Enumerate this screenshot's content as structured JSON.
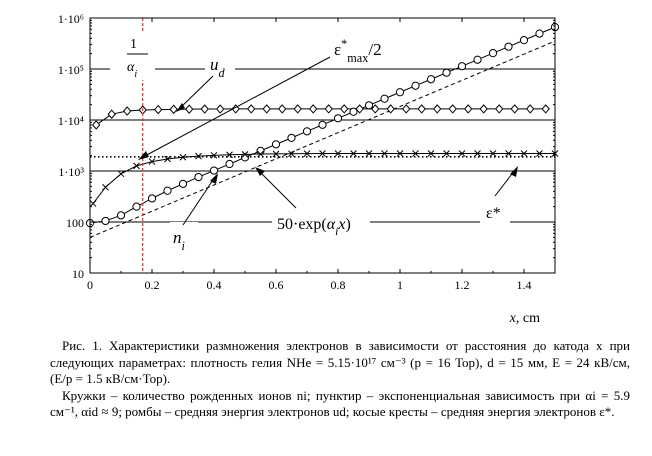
{
  "chart_data": {
    "type": "line",
    "x_axis": {
      "label": "x, cm",
      "range": [
        0,
        1.5
      ],
      "ticks": [
        0,
        0.2,
        0.4,
        0.6,
        0.8,
        1,
        1.2,
        1.4
      ],
      "tick_labels": [
        "0",
        "0.2",
        "0.4",
        "0.6",
        "0.8",
        "1",
        "1.2",
        "1.4"
      ]
    },
    "y_axis": {
      "scale": "log",
      "range": [
        10,
        1000000
      ],
      "ticks": [
        10,
        100,
        1000,
        10000,
        100000,
        1000000
      ],
      "tick_labels": [
        "10",
        "100",
        "1·10³",
        "1·10⁴",
        "1·10⁵",
        "1·10⁶"
      ]
    },
    "series": [
      {
        "name": "ni",
        "marker": "circle",
        "x": [
          0,
          0.05,
          0.1,
          0.15,
          0.2,
          0.25,
          0.3,
          0.35,
          0.4,
          0.45,
          0.5,
          0.55,
          0.6,
          0.65,
          0.7,
          0.75,
          0.8,
          0.85,
          0.9,
          0.95,
          1.0,
          1.05,
          1.1,
          1.15,
          1.2,
          1.25,
          1.3,
          1.35,
          1.4,
          1.45,
          1.5
        ],
        "y": [
          95,
          105,
          135,
          200,
          290,
          410,
          560,
          760,
          1020,
          1370,
          1850,
          2480,
          3330,
          4460,
          5990,
          8040,
          10800,
          14500,
          19400,
          26100,
          35000,
          47000,
          63000,
          84600,
          113500,
          152000,
          204500,
          274000,
          368000,
          494000,
          663000
        ]
      },
      {
        "name": "ud",
        "marker": "diamond",
        "x": [
          0.02,
          0.07,
          0.12,
          0.17,
          0.22,
          0.27,
          0.32,
          0.37,
          0.42,
          0.47,
          0.52,
          0.57,
          0.62,
          0.67,
          0.72,
          0.77,
          0.82,
          0.87,
          0.92,
          0.97,
          1.02,
          1.07,
          1.12,
          1.17,
          1.22,
          1.27,
          1.32,
          1.37,
          1.42,
          1.47
        ],
        "y": [
          8000,
          13000,
          15000,
          15700,
          16000,
          16200,
          16300,
          16400,
          16400,
          16500,
          16500,
          16500,
          16500,
          16500,
          16500,
          16500,
          16500,
          16500,
          16500,
          16500,
          16500,
          16500,
          16500,
          16500,
          16500,
          16500,
          16500,
          16500,
          16500,
          16500
        ]
      },
      {
        "name": "ε*",
        "marker": "cross",
        "x": [
          0.01,
          0.05,
          0.1,
          0.15,
          0.2,
          0.25,
          0.3,
          0.35,
          0.4,
          0.45,
          0.5,
          0.55,
          0.6,
          0.65,
          0.7,
          0.75,
          0.8,
          0.85,
          0.9,
          0.95,
          1.0,
          1.05,
          1.1,
          1.15,
          1.2,
          1.25,
          1.3,
          1.35,
          1.4,
          1.45,
          1.5
        ],
        "y": [
          230,
          480,
          880,
          1260,
          1530,
          1720,
          1860,
          1960,
          2030,
          2080,
          2120,
          2150,
          2170,
          2180,
          2190,
          2200,
          2200,
          2200,
          2200,
          2200,
          2200,
          2200,
          2200,
          2200,
          2200,
          2200,
          2200,
          2200,
          2200,
          2200,
          2200
        ]
      },
      {
        "name": "50·exp(αix)",
        "style": "dashed",
        "x": [
          0,
          1.5
        ],
        "y": [
          50,
          353000
        ]
      },
      {
        "name": "ε*max/2",
        "style": "dotted",
        "x": [
          0,
          1.5
        ],
        "y": [
          1900,
          1900
        ]
      }
    ],
    "vertical_marker": {
      "x": 0.17,
      "label_top": "1",
      "label_bottom": "αi"
    },
    "annotations": {
      "ud": "ud",
      "emax": "ε*max/2",
      "ni": "ni",
      "exp": "50·exp(αix)",
      "eps": "ε*"
    }
  },
  "caption": {
    "p1": "Рис. 1. Характеристики размножения электронов в зависимости от расстояния до катода x при следующих параметрах: плотность гелия NHe = 5.15·10¹⁷ см⁻³ (p = 16 Тор), d = 15 мм, E = 24 кВ/см, (E/p = 1.5 кВ/см·Тор).",
    "p2": "Кружки – количество рожденных ионов ni; пунктир – экспоненциальная зависимость при αi = 5.9 см⁻¹, αid ≈ 9; ромбы – средняя энергия электронов ud; косые кресты – средняя энергия электронов ε*."
  }
}
